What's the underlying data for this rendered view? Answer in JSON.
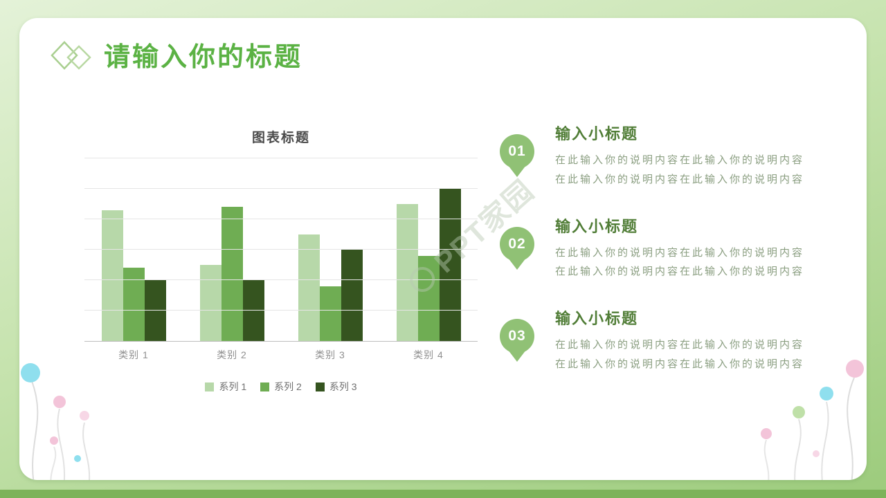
{
  "slide": {
    "title": "请输入你的标题",
    "watermark": "PPT家园"
  },
  "chart_data": {
    "type": "bar",
    "title": "图表标题",
    "categories": [
      "类别 1",
      "类别 2",
      "类别 3",
      "类别 4"
    ],
    "series": [
      {
        "name": "系列 1",
        "color": "#b7d8a9",
        "values": [
          4.3,
          2.5,
          3.5,
          4.5
        ]
      },
      {
        "name": "系列 2",
        "color": "#6fad53",
        "values": [
          2.4,
          4.4,
          1.8,
          2.8
        ]
      },
      {
        "name": "系列 3",
        "color": "#35541f",
        "values": [
          2.0,
          2.0,
          3.0,
          5.0
        ]
      }
    ],
    "ylim": [
      0,
      6
    ],
    "gridline_count": 6,
    "grid": true,
    "legend_position": "bottom"
  },
  "items": [
    {
      "number": "01",
      "heading": "输入小标题",
      "body": "在此输入你的说明内容在此输入你的说明内容\n在此输入你的说明内容在此输入你的说明内容"
    },
    {
      "number": "02",
      "heading": "输入小标题",
      "body": "在此输入你的说明内容在此输入你的说明内容\n在此输入你的说明内容在此输入你的说明内容"
    },
    {
      "number": "03",
      "heading": "输入小标题",
      "body": "在此输入你的说明内容在此输入你的说明内容\n在此输入你的说明内容在此输入你的说明内容"
    }
  ],
  "colors": {
    "title_green": "#5bb244",
    "heading_green": "#507d36",
    "pin_green": "#90c175",
    "body_text": "#8a9e80",
    "border_gradient_start": "#e4f2d8",
    "border_gradient_end": "#9ccb7c",
    "bottom_strip": "#7cb35a"
  }
}
